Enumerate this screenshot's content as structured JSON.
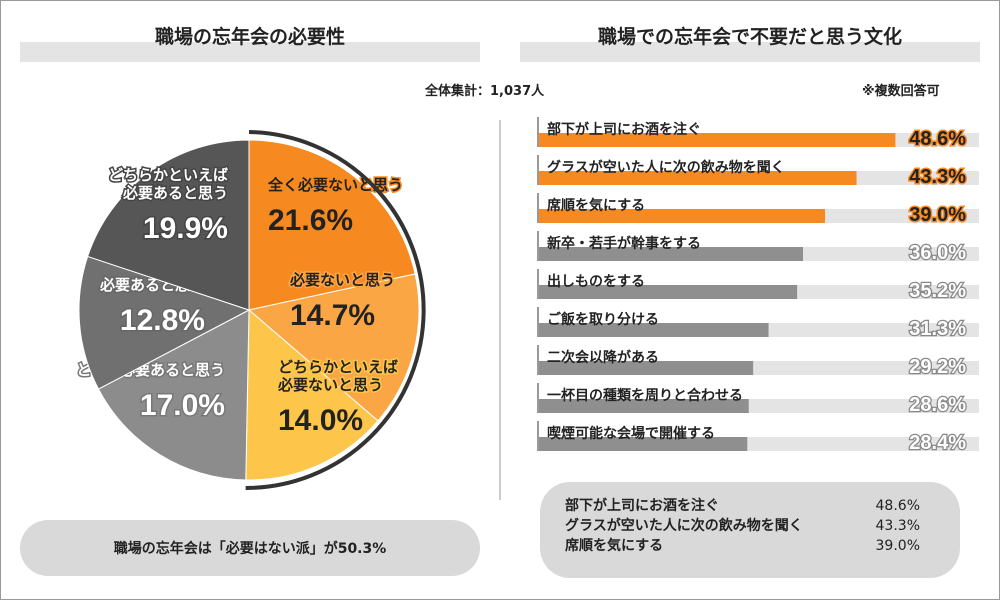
{
  "left_title": "職場の忘年会の必要性",
  "right_title": "職場での忘年会で不要だと思う文化",
  "total": "全体集計：1,037人",
  "note": "※複数回答可",
  "summary": "職場の忘年会は「必要はない派」が50.3%",
  "top3": [
    {
      "label": "部下が上司にお酒を注ぐ",
      "value": "48.6%"
    },
    {
      "label": "グラスが空いた人に次の飲み物を聞く",
      "value": "43.3%"
    },
    {
      "label": "席順を気にする",
      "value": "39.0%"
    }
  ],
  "chart_data": [
    {
      "type": "pie",
      "slices": [
        {
          "label": "全く必要ないと思う",
          "value": 21.6,
          "display": "21.6%",
          "color": "#f6891f"
        },
        {
          "label": "必要ないと思う",
          "value": 14.7,
          "display": "14.7%",
          "color": "#fba645"
        },
        {
          "label": "どちらかといえば\n必要ないと思う",
          "value": 14.0,
          "display": "14.0%",
          "color": "#fdc64a"
        },
        {
          "label": "とても必要あると思う",
          "value": 17.0,
          "display": "17.0%",
          "color": "#8c8c8c"
        },
        {
          "label": "必要あると思う",
          "value": 12.8,
          "display": "12.8%",
          "color": "#707070"
        },
        {
          "label": "どちらかといえば\n必要あると思う",
          "value": 19.9,
          "display": "19.9%",
          "color": "#565656"
        }
      ]
    },
    {
      "type": "bar",
      "orientation": "horizontal",
      "xlim": [
        0,
        60
      ],
      "categories": [
        "部下が上司にお酒を注ぐ",
        "グラスが空いた人に次の飲み物を聞く",
        "席順を気にする",
        "新卒・若手が幹事をする",
        "出しものをする",
        "ご飯を取り分ける",
        "二次会以降がある",
        "一杯目の種類を周りと合わせる",
        "喫煙可能な会場で開催する"
      ],
      "values": [
        48.6,
        43.3,
        39.0,
        36.0,
        35.2,
        31.3,
        29.2,
        28.6,
        28.4
      ],
      "labels": [
        "48.6%",
        "43.3%",
        "39.0%",
        "36.0%",
        "35.2%",
        "31.3%",
        "29.2%",
        "28.6%",
        "28.4%"
      ],
      "highlight_color": "#f6891f",
      "other_color": "#8f8f8f",
      "track_color": "#e4e4e4"
    }
  ]
}
